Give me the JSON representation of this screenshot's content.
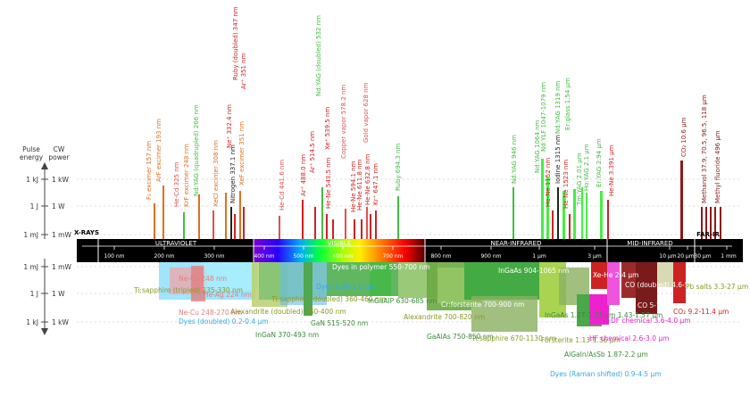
{
  "axis": {
    "pulse_header": [
      "Pulse",
      "energy"
    ],
    "cw_header": [
      "CW",
      "power"
    ],
    "gas_levels": [
      {
        "pulse": "1 kJ",
        "cw": "1 kW"
      },
      {
        "pulse": "1 J",
        "cw": "1 W"
      },
      {
        "pulse": "1 mJ",
        "cw": "1 mW"
      }
    ],
    "solid_levels": [
      {
        "pulse": "1 mJ",
        "cw": "1 mW"
      },
      {
        "pulse": "1 J",
        "cw": "1 W"
      },
      {
        "pulse": "1 kJ",
        "cw": "1 kW"
      }
    ]
  },
  "spectrum": {
    "regions": [
      "X-RAYS",
      "ULTRAVIOLET",
      "VISIBLE",
      "NEAR-INFRARED",
      "MID-INFRARED",
      "FAR-IR"
    ],
    "ticks": [
      "100 nm",
      "200 nm",
      "300 nm",
      "400 nm",
      "500 nm",
      "600 nm",
      "700 nm",
      "800 nm",
      "900 nm",
      "1 μm",
      "3 μm",
      "10 μm",
      "20 μm",
      "30 μm",
      "1 mm"
    ]
  },
  "gas_lasers": [
    {
      "text": "F₂ excimer 157 nm",
      "color": "#e07020"
    },
    {
      "text": "ArF excimer 193 nm",
      "color": "#e07020"
    },
    {
      "text": "KrF excimer 248 nm",
      "color": "#e07020"
    },
    {
      "text": "XeCl excimer 308 nm",
      "color": "#e07020"
    },
    {
      "text": "XeF excimer 351 nm",
      "color": "#e07020"
    },
    {
      "text": "Nd:YAG (quadrupled) 266 nm",
      "color": "#44bb44"
    },
    {
      "text": "He-Cd 325 nm",
      "color": "#e05050"
    },
    {
      "text": "Nitrogen 337.1 nm",
      "color": "#222222"
    },
    {
      "text": "Ne⁺ 332.4 nm",
      "color": "#cc2222"
    },
    {
      "text": "Ar⁺ 351 nm",
      "color": "#cc2222"
    },
    {
      "text": "Ruby (doubled) 347 nm",
      "color": "#cc2222"
    },
    {
      "text": "He-Cd 441.6 nm",
      "color": "#e05050"
    },
    {
      "text": "Ar⁺ 488.0 nm",
      "color": "#cc2222"
    },
    {
      "text": "Ar⁺ 514.5 nm",
      "color": "#cc2222"
    },
    {
      "text": "Nd:YAG (doubled) 532 nm",
      "color": "#44bb44"
    },
    {
      "text": "Xe⁺ 539.5 nm",
      "color": "#cc2222"
    },
    {
      "text": "He-Ne 543.5 nm",
      "color": "#cc2222"
    },
    {
      "text": "Copper vapor 578.2 nm",
      "color": "#e05050"
    },
    {
      "text": "He-Ne 594.1 nm",
      "color": "#cc2222"
    },
    {
      "text": "He-Ne 611.8 nm",
      "color": "#cc2222"
    },
    {
      "text": "Gold vapor 628 nm",
      "color": "#e05050"
    },
    {
      "text": "He-Ne 632.8 nm",
      "color": "#cc2222"
    },
    {
      "text": "Kr⁺ 647.1 nm",
      "color": "#cc2222"
    },
    {
      "text": "Ruby 694.3 nm",
      "color": "#44bb44"
    },
    {
      "text": "Nd:YAG 946 nm",
      "color": "#44bb44"
    },
    {
      "text": "Nd:YAG 1064 nm",
      "color": "#44bb44"
    },
    {
      "text": "Nd:YLF 1047-1079 nm",
      "color": "#44bb44"
    },
    {
      "text": "He-Ne 1152 nm",
      "color": "#cc2222"
    },
    {
      "text": "Iodine 1315 nm",
      "color": "#222222"
    },
    {
      "text": "Nd:YAG 1319 nm",
      "color": "#44bb44"
    },
    {
      "text": "He-Ne 1523 nm",
      "color": "#cc2222"
    },
    {
      "text": "Er:glass 1.54 μm",
      "color": "#44bb44"
    },
    {
      "text": "Tm:YAG 2.01 μm",
      "color": "#44bb44"
    },
    {
      "text": "Ho:YAG 2.1 μm",
      "color": "#44bb44"
    },
    {
      "text": "Er:YAG 2.94 μm",
      "color": "#44bb44"
    },
    {
      "text": "He-Ne 3.391 μm",
      "color": "#cc2222"
    },
    {
      "text": "CO₂ 10.6 μm",
      "color": "#8b1a1a"
    },
    {
      "text": "Methanol 37.9, 70.5, 96.5, 118 μm",
      "color": "#8b1a1a"
    },
    {
      "text": "Methyl fluoride 496 μm",
      "color": "#8b1a1a"
    }
  ],
  "solid_lasers": [
    {
      "text": "Ti:sapphire (tripled) 235-330 nm",
      "color": "#889922"
    },
    {
      "text": "Ne-Cu 248-270 nm",
      "color": "#e08080"
    },
    {
      "text": "He-Ag 224 nm",
      "color": "#e08080"
    },
    {
      "text": "Ne-Cu 248 nm",
      "color": "#e08080"
    },
    {
      "text": "Dyes (doubled) 0.2-0.4 μm",
      "color": "#33aadd"
    },
    {
      "text": "Alexandrite (doubled) 360-400 nm",
      "color": "#889922"
    },
    {
      "text": "InGaN 370-493 nm",
      "color": "#3a8a3a"
    },
    {
      "text": "Ti:sapphire (doubled) 360-460 nm",
      "color": "#889922"
    },
    {
      "text": "Dyes 0.38-1.0 μm",
      "color": "#33aadd"
    },
    {
      "text": "Dyes in polymer 550-700 nm",
      "color": "#ffffff"
    },
    {
      "text": "GaN 515-520 nm",
      "color": "#3a8a3a"
    },
    {
      "text": "InGaAlP 630-685 nm",
      "color": "#3a8a3a"
    },
    {
      "text": "Alexandrite 700-820 nm",
      "color": "#889922"
    },
    {
      "text": "Cr:forsterite 700-900 nm",
      "color": "#ffffff"
    },
    {
      "text": "GaAlAs 750-850 nm",
      "color": "#3a8a3a"
    },
    {
      "text": "Ti:sapphire 670-1130 nm",
      "color": "#889922"
    },
    {
      "text": "InGaAs 904-1065 nm",
      "color": "#ffffff"
    },
    {
      "text": "InGaAs 1.27-1.33 μm 1.43-1.57 μm",
      "color": "#3a8a3a"
    },
    {
      "text": "Forsterite 1.13-1.36 μm",
      "color": "#889922"
    },
    {
      "text": "AlGaIn/AsSb 1.87-2.2 μm",
      "color": "#3a8a3a"
    },
    {
      "text": "Dyes (Raman shifted) 0.9-4.5 μm",
      "color": "#33aadd"
    },
    {
      "text": "Xe-He 2-4 μm",
      "color": "#ffffff"
    },
    {
      "text": "DF chemical 3.6-4.0 μm",
      "color": "#dd22cc"
    },
    {
      "text": "HF chemical 2.6-3.0 μm",
      "color": "#dd22cc"
    },
    {
      "text": "CO (doubled) 4.6-5.8 μm",
      "color": "#ffffff"
    },
    {
      "text": "CO 5-7 μm",
      "color": "#ffffff"
    },
    {
      "text": "Pb salts 3.3-27 μm",
      "color": "#889922"
    },
    {
      "text": "CO₂ 9.2-11.4 μm",
      "color": "#cc2222"
    }
  ]
}
